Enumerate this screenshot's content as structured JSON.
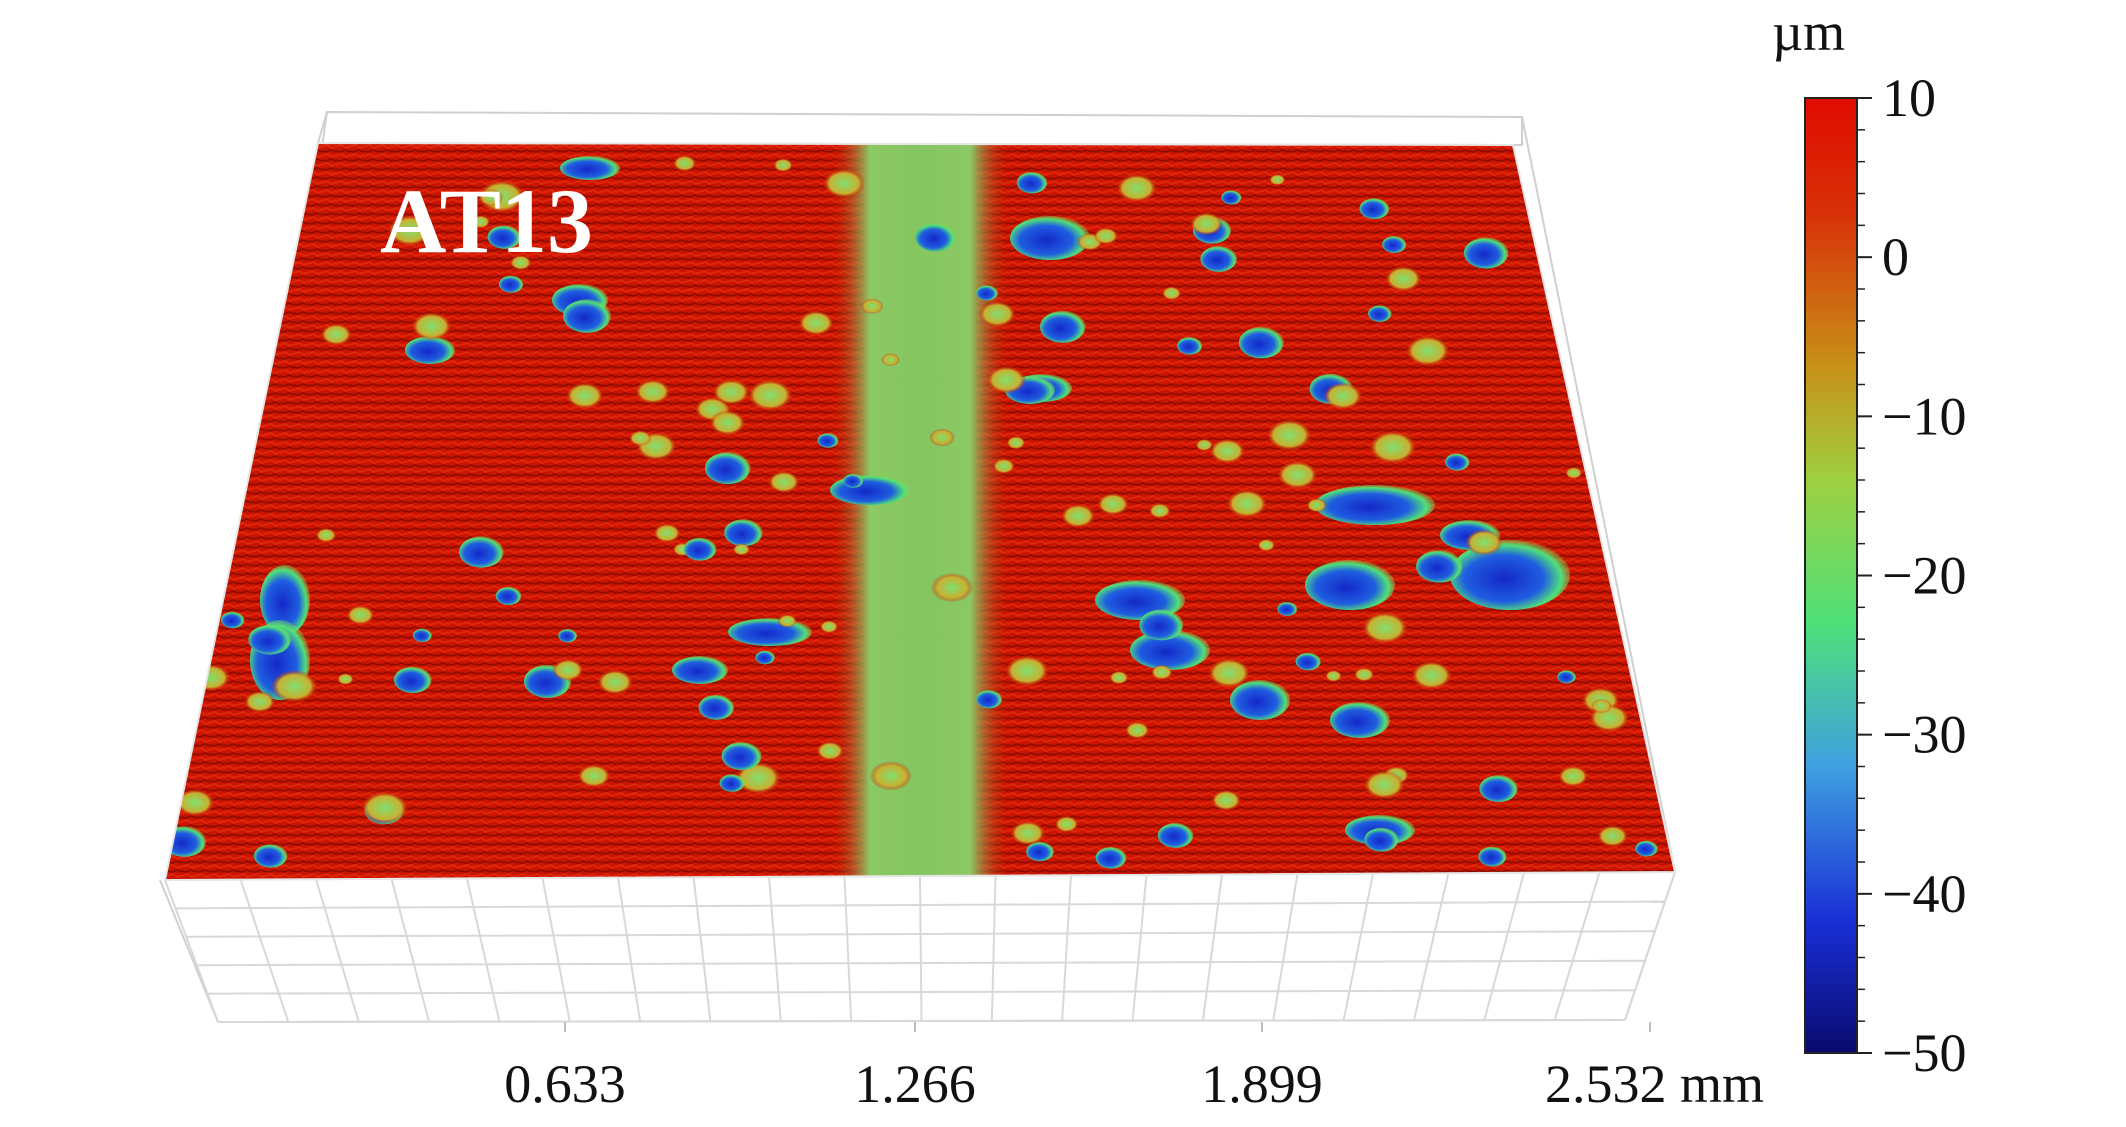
{
  "chart_data": {
    "type": "heatmap",
    "subtype": "3d-surface-topography",
    "sample_label": "AT13",
    "x_ticks": [
      "0.633",
      "1.266",
      "1.899",
      "2.532"
    ],
    "x_unit": "mm",
    "colorbar": {
      "unit": "µm",
      "min": -50,
      "max": 10,
      "ticks": [
        "10",
        "0",
        "−10",
        "−20",
        "−30",
        "−40",
        "−50"
      ],
      "tick_values": [
        10,
        0,
        -10,
        -20,
        -30,
        -40,
        -50
      ],
      "colors": [
        "#0a0a6e",
        "#1a30d8",
        "#3fa0e0",
        "#4fe07a",
        "#9fd040",
        "#c89018",
        "#d83008",
        "#e00c00"
      ]
    },
    "surface": {
      "base_color": "#cc1500",
      "groove_color": "#8cc864",
      "pit_color": "#1428c8"
    },
    "grid": true
  }
}
